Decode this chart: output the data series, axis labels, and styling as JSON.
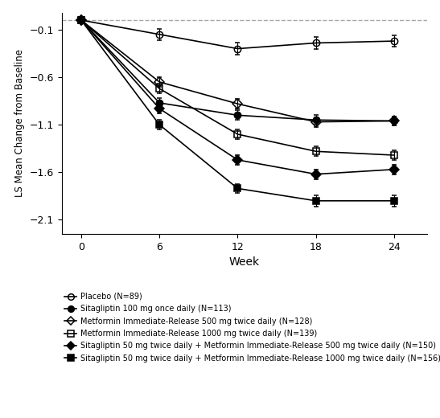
{
  "xlabel": "Week",
  "ylabel": "LS Mean Change from Baseline",
  "weeks": [
    0,
    6,
    12,
    18,
    24
  ],
  "dashed_line_y": 0.0,
  "series": [
    {
      "label": "Placebo (N=89)",
      "values": [
        0.0,
        -0.15,
        -0.3,
        -0.24,
        -0.22
      ],
      "marker": "o",
      "fillstyle": "none",
      "color": "black",
      "linewidth": 1.2,
      "markersize": 6,
      "yerr": [
        0.0,
        0.06,
        0.06,
        0.06,
        0.06
      ]
    },
    {
      "label": "Sitagliptin 100 mg once daily (N=113)",
      "values": [
        0.0,
        -0.87,
        -1.0,
        -1.05,
        -1.06
      ],
      "marker": "o",
      "fillstyle": "full",
      "color": "black",
      "linewidth": 1.2,
      "markersize": 6,
      "yerr": [
        0.0,
        0.05,
        0.05,
        0.05,
        0.05
      ]
    },
    {
      "label": "Metformin Immediate-Release 500 mg twice daily (N=128)",
      "values": [
        0.0,
        -0.65,
        -0.88,
        -1.07,
        -1.06
      ],
      "marker": "D",
      "fillstyle": "none",
      "color": "black",
      "linewidth": 1.2,
      "markersize": 6,
      "yerr": [
        0.0,
        0.05,
        0.05,
        0.05,
        0.05
      ]
    },
    {
      "label": "Metformin Immediate-Release 1000 mg twice daily (N=139)",
      "values": [
        0.0,
        -0.72,
        -1.2,
        -1.38,
        -1.42
      ],
      "marker": "s",
      "fillstyle": "none",
      "color": "black",
      "linewidth": 1.2,
      "markersize": 6,
      "yerr": [
        0.0,
        0.05,
        0.05,
        0.05,
        0.05
      ]
    },
    {
      "label": "Sitagliptin 50 mg twice daily + Metformin Immediate-Release 500 mg twice daily (N=150)",
      "values": [
        0.0,
        -0.93,
        -1.47,
        -1.62,
        -1.57
      ],
      "marker": "D",
      "fillstyle": "full",
      "color": "black",
      "linewidth": 1.2,
      "markersize": 6,
      "yerr": [
        0.0,
        0.05,
        0.05,
        0.05,
        0.05
      ]
    },
    {
      "label": "Sitagliptin 50 mg twice daily + Metformin Immediate-Release 1000 mg twice daily (N=156)",
      "values": [
        0.0,
        -1.1,
        -1.77,
        -1.9,
        -1.9
      ],
      "marker": "s",
      "fillstyle": "full",
      "color": "black",
      "linewidth": 1.2,
      "markersize": 6,
      "yerr": [
        0.0,
        0.05,
        0.05,
        0.06,
        0.06
      ]
    }
  ],
  "ylim": [
    -2.25,
    0.08
  ],
  "yticks": [
    -2.1,
    -1.6,
    -1.1,
    -0.6,
    -0.1
  ],
  "xticks": [
    0,
    6,
    12,
    18,
    24
  ],
  "background_color": "white",
  "legend_labels": [
    "Placebo (N=89)",
    "Sitagliptin 100 mg once daily (N=113)",
    "Metformin Immediate-Release 500 mg twice daily (N=128)",
    "Metformin Immediate-Release 1000 mg twice daily (N=139)",
    "Sitagliptin 50 mg twice daily + Metformin Immediate-Release 500 mg twice daily (N=150)",
    "Sitagliptin 50 mg twice daily + Metformin Immediate-Release 1000 mg twice daily (N=156)"
  ]
}
